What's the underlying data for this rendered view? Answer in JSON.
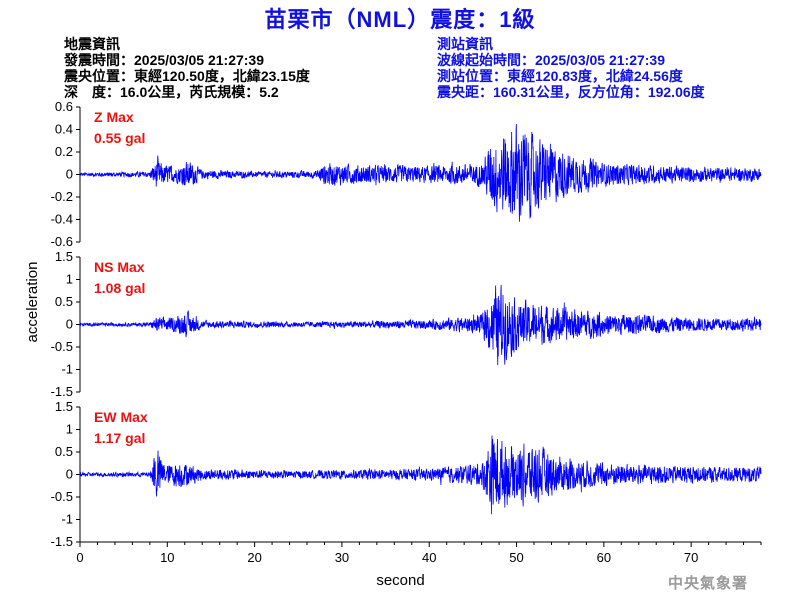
{
  "title": "苗栗市（NML）震度：1級",
  "event_info": {
    "heading": "地震資訊",
    "origin_time": "發震時間：2025/03/05 21:27:39",
    "epicenter": "震央位置：東經120.50度，北緯23.15度",
    "depth_magnitude": "深　度：16.0公里，芮氏規模：5.2"
  },
  "station_info": {
    "heading": "測站資訊",
    "record_start": "波線起始時間：2025/03/05 21:27:39",
    "location": "測站位置：東經120.83度，北緯24.56度",
    "distance": "震央距：160.31公里，反方位角：192.06度"
  },
  "credit": "中央氣象署",
  "colors": {
    "title": "#1010e0",
    "trace": "#0000ff",
    "max_label": "#ee1111",
    "station_text": "#1010e0"
  },
  "chart_data": {
    "type": "line",
    "xlabel": "second",
    "ylabel": "acceleration",
    "xlim": [
      0,
      78
    ],
    "xticks": [
      0,
      10,
      20,
      30,
      40,
      50,
      60,
      70
    ],
    "panels": [
      {
        "name": "Z",
        "max_label": "Z Max",
        "max_value": "0.55 gal",
        "peak": 0.55,
        "ylim": [
          -0.6,
          0.6
        ],
        "yticks": [
          0.6,
          0.4,
          0.2,
          0,
          -0.2,
          -0.4,
          -0.6
        ],
        "ytick_labels": [
          "0.6",
          "0.4",
          "0.2",
          "0",
          "-0.2",
          "-0.4",
          "-0.6"
        ],
        "envelope": [
          [
            0,
            0.02
          ],
          [
            8,
            0.03
          ],
          [
            8.8,
            0.16
          ],
          [
            9.8,
            0.1
          ],
          [
            11,
            0.08
          ],
          [
            12.4,
            0.15
          ],
          [
            14,
            0.05
          ],
          [
            20,
            0.03
          ],
          [
            27,
            0.04
          ],
          [
            28,
            0.12
          ],
          [
            32,
            0.1
          ],
          [
            40,
            0.09
          ],
          [
            46,
            0.12
          ],
          [
            47.3,
            0.38
          ],
          [
            49,
            0.46
          ],
          [
            50.2,
            0.55
          ],
          [
            52,
            0.4
          ],
          [
            56,
            0.22
          ],
          [
            60,
            0.12
          ],
          [
            70,
            0.08
          ],
          [
            78,
            0.07
          ]
        ]
      },
      {
        "name": "NS",
        "max_label": "NS Max",
        "max_value": "1.08 gal",
        "peak": 1.08,
        "ylim": [
          -1.5,
          1.5
        ],
        "yticks": [
          1.5,
          1,
          0.5,
          0,
          -0.5,
          -1,
          -1.5
        ],
        "ytick_labels": [
          "1.5",
          "1",
          "0.5",
          "0",
          "-0.5",
          "-1",
          "-1.5"
        ],
        "envelope": [
          [
            0,
            0.04
          ],
          [
            8,
            0.05
          ],
          [
            8.8,
            0.2
          ],
          [
            10.5,
            0.18
          ],
          [
            12.3,
            0.32
          ],
          [
            14,
            0.1
          ],
          [
            25,
            0.07
          ],
          [
            30,
            0.08
          ],
          [
            40,
            0.12
          ],
          [
            46,
            0.25
          ],
          [
            47.3,
            0.9
          ],
          [
            48,
            1.08
          ],
          [
            50,
            0.65
          ],
          [
            55,
            0.45
          ],
          [
            60,
            0.3
          ],
          [
            70,
            0.18
          ],
          [
            78,
            0.16
          ]
        ]
      },
      {
        "name": "EW",
        "max_label": "EW Max",
        "max_value": "1.17 gal",
        "peak": 1.17,
        "ylim": [
          -1.5,
          1.5
        ],
        "yticks": [
          1.5,
          1,
          0.5,
          0,
          -0.5,
          -1,
          -1.5
        ],
        "ytick_labels": [
          "1.5",
          "1",
          "0.5",
          "0",
          "-0.5",
          "-1",
          "-1.5"
        ],
        "envelope": [
          [
            0,
            0.05
          ],
          [
            8,
            0.06
          ],
          [
            8.8,
            0.7
          ],
          [
            9.8,
            0.25
          ],
          [
            11.5,
            0.35
          ],
          [
            14,
            0.15
          ],
          [
            25,
            0.1
          ],
          [
            30,
            0.12
          ],
          [
            40,
            0.15
          ],
          [
            46,
            0.3
          ],
          [
            47.3,
            1.17
          ],
          [
            49,
            0.75
          ],
          [
            52,
            0.8
          ],
          [
            55,
            0.45
          ],
          [
            60,
            0.3
          ],
          [
            70,
            0.22
          ],
          [
            78,
            0.2
          ]
        ]
      }
    ]
  }
}
